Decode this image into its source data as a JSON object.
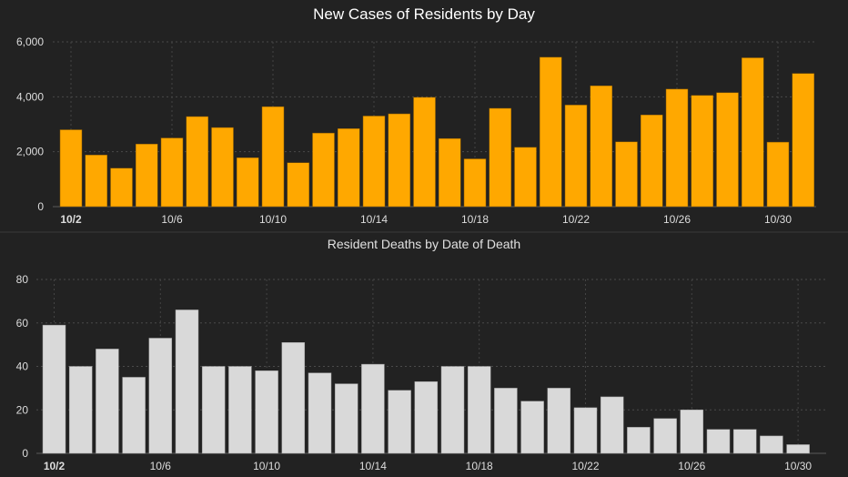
{
  "chart_data": [
    {
      "type": "bar",
      "title": "New Cases of Residents by Day",
      "xlabel": "",
      "ylabel": "",
      "ylim": [
        0,
        6000
      ],
      "yticks": [
        "0",
        "2,000",
        "4,000",
        "6,000"
      ],
      "ytick_values": [
        0,
        2000,
        4000,
        6000
      ],
      "xticks": [
        "10/2",
        "10/6",
        "10/10",
        "10/14",
        "10/18",
        "10/22",
        "10/26",
        "10/30"
      ],
      "grid": true,
      "bar_color": "#FFA800",
      "categories": [
        "10/2",
        "10/3",
        "10/4",
        "10/5",
        "10/6",
        "10/7",
        "10/8",
        "10/9",
        "10/10",
        "10/11",
        "10/12",
        "10/13",
        "10/14",
        "10/15",
        "10/16",
        "10/17",
        "10/18",
        "10/19",
        "10/20",
        "10/21",
        "10/22",
        "10/23",
        "10/24",
        "10/25",
        "10/26",
        "10/27",
        "10/28",
        "10/29",
        "10/30",
        "10/31"
      ],
      "values": [
        2800,
        1880,
        1400,
        2280,
        2500,
        3280,
        2880,
        1780,
        3640,
        1600,
        2680,
        2840,
        3300,
        3380,
        3980,
        2480,
        1740,
        3580,
        2160,
        5440,
        3700,
        4400,
        2360,
        3340,
        4280,
        4050,
        4150,
        5420,
        2350,
        4850
      ]
    },
    {
      "type": "bar",
      "title": "Resident Deaths by Date of Death",
      "xlabel": "",
      "ylabel": "",
      "ylim": [
        0,
        80
      ],
      "yticks": [
        "0",
        "20",
        "40",
        "60",
        "80"
      ],
      "ytick_values": [
        0,
        20,
        40,
        60,
        80
      ],
      "xticks": [
        "10/2",
        "10/6",
        "10/10",
        "10/14",
        "10/18",
        "10/22",
        "10/26",
        "10/30"
      ],
      "grid": true,
      "bar_color": "#D9D9D9",
      "categories": [
        "10/2",
        "10/3",
        "10/4",
        "10/5",
        "10/6",
        "10/7",
        "10/8",
        "10/9",
        "10/10",
        "10/11",
        "10/12",
        "10/13",
        "10/14",
        "10/15",
        "10/16",
        "10/17",
        "10/18",
        "10/19",
        "10/20",
        "10/21",
        "10/22",
        "10/23",
        "10/24",
        "10/25",
        "10/26",
        "10/27",
        "10/28",
        "10/29",
        "10/30"
      ],
      "values": [
        59,
        40,
        48,
        35,
        53,
        66,
        40,
        40,
        38,
        51,
        37,
        32,
        41,
        29,
        33,
        40,
        40,
        30,
        24,
        30,
        21,
        26,
        12,
        16,
        20,
        11,
        11,
        8,
        4
      ]
    }
  ]
}
